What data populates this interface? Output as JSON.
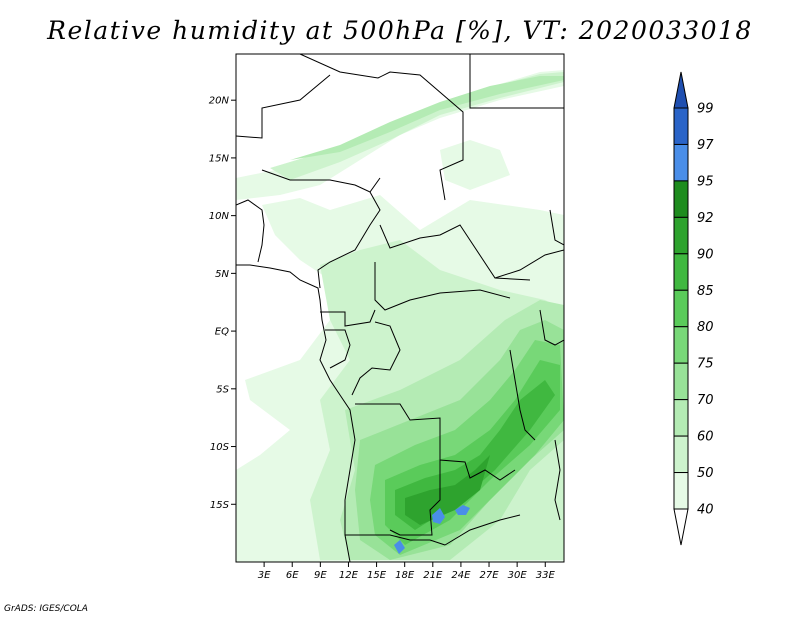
{
  "title": "Relative humidity at 500hPa [%], VT: 2020033018",
  "credit": "GrADS: IGES/COLA",
  "map": {
    "lon_range": [
      0,
      35
    ],
    "lat_range": [
      -20,
      24
    ],
    "lat_ticks": [
      {
        "value": 20,
        "label": "20N"
      },
      {
        "value": 15,
        "label": "15N"
      },
      {
        "value": 10,
        "label": "10N"
      },
      {
        "value": 5,
        "label": "5N"
      },
      {
        "value": 0,
        "label": "EQ"
      },
      {
        "value": -5,
        "label": "5S"
      },
      {
        "value": -10,
        "label": "10S"
      },
      {
        "value": -15,
        "label": "15S"
      }
    ],
    "lon_ticks": [
      {
        "value": 3,
        "label": "3E"
      },
      {
        "value": 6,
        "label": "6E"
      },
      {
        "value": 9,
        "label": "9E"
      },
      {
        "value": 12,
        "label": "12E"
      },
      {
        "value": 15,
        "label": "15E"
      },
      {
        "value": 18,
        "label": "18E"
      },
      {
        "value": 21,
        "label": "21E"
      },
      {
        "value": 24,
        "label": "24E"
      },
      {
        "value": 27,
        "label": "27E"
      },
      {
        "value": 30,
        "label": "30E"
      },
      {
        "value": 33,
        "label": "33E"
      }
    ]
  },
  "colorbar": {
    "levels": [
      "99",
      "97",
      "95",
      "92",
      "90",
      "85",
      "80",
      "75",
      "70",
      "60",
      "50",
      "40"
    ],
    "colors": [
      "#2a64c8",
      "#4a8ee8",
      "#1e8c1e",
      "#2ea32e",
      "#40b840",
      "#5acb5a",
      "#78d878",
      "#98e298",
      "#b4ebb4",
      "#cdf3cd",
      "#e6fae6"
    ],
    "top_color": "#1f4fb0",
    "bottom_color": "#ffffff"
  },
  "humidity_fields": [
    {
      "level": "40",
      "color": "#e6fae6"
    },
    {
      "level": "50",
      "color": "#cdf3cd"
    },
    {
      "level": "60",
      "color": "#b4ebb4"
    },
    {
      "level": "70",
      "color": "#98e298"
    },
    {
      "level": "75",
      "color": "#78d878"
    },
    {
      "level": "80",
      "color": "#5acb5a"
    },
    {
      "level": "85",
      "color": "#40b840"
    },
    {
      "level": "90",
      "color": "#2ea32e"
    },
    {
      "level": "95",
      "color": "#4a8ee8"
    }
  ]
}
